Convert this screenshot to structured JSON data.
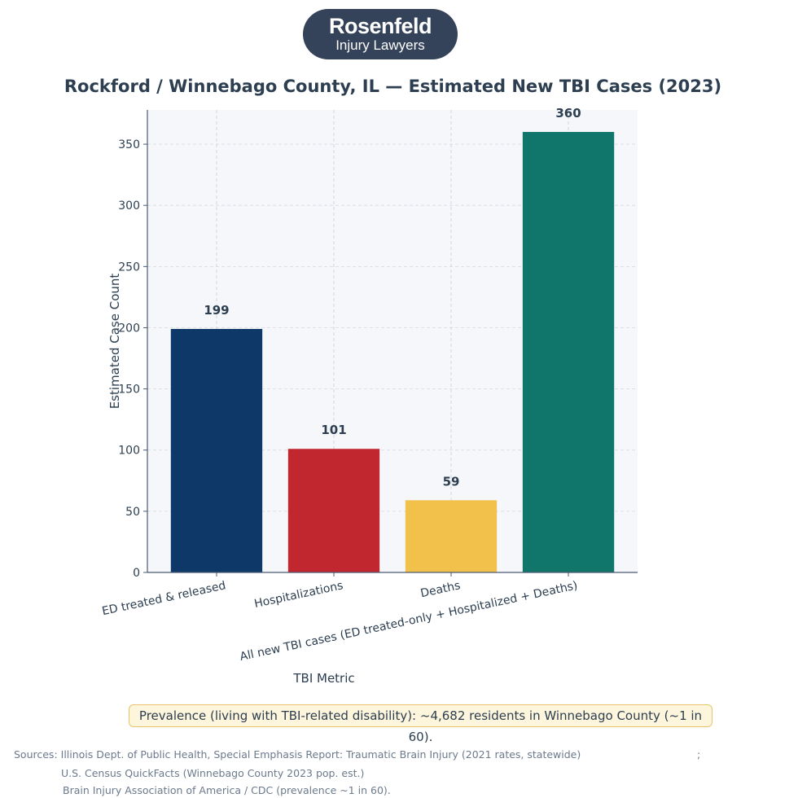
{
  "logo": {
    "line1": "Rosenfeld",
    "line2": "Injury Lawyers"
  },
  "chart_data": {
    "type": "bar",
    "title": "Rockford / Winnebago County, IL — Estimated New TBI Cases (2023)",
    "xlabel": "TBI Metric",
    "ylabel": "Estimated Case Count",
    "categories": [
      "ED treated & released",
      "Hospitalizations",
      "Deaths",
      "All new TBI cases (ED treated-only + Hospitalized + Deaths)"
    ],
    "values": [
      199,
      101,
      59,
      360
    ],
    "data_labels": [
      "199",
      "101",
      "59",
      "360"
    ],
    "colors": [
      "#0d3868",
      "#c1272f",
      "#f2c14b",
      "#10766c"
    ],
    "ylim": [
      0,
      378
    ],
    "yticks": [
      0,
      50,
      100,
      150,
      200,
      250,
      300,
      350
    ],
    "grid": true
  },
  "note": "Prevalence (living with TBI-related disability): ~4,682 residents in Winnebago County (~1 in 60).",
  "sources": {
    "line1": "Sources: Illinois Dept. of Public Health, Special Emphasis Report: Traumatic Brain Injury (2021 rates, statewide)",
    "sep": ";",
    "line2": "U.S. Census QuickFacts (Winnebago County 2023 pop. est.)",
    "line3": "Brain Injury Association of America / CDC (prevalence ~1 in 60)."
  }
}
